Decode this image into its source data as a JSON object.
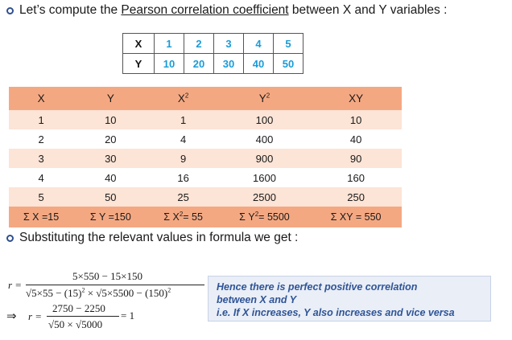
{
  "intro": {
    "prefix": "Let’s compute the ",
    "link": "Pearson correlation coefficient",
    "suffix": " between X and Y variables :"
  },
  "small_table": {
    "x_label": "X",
    "y_label": "Y",
    "x_values": [
      "1",
      "2",
      "3",
      "4",
      "5"
    ],
    "y_values": [
      "10",
      "20",
      "30",
      "40",
      "50"
    ]
  },
  "big_table": {
    "headers": [
      "X",
      "Y",
      "X",
      "Y",
      "XY"
    ],
    "header_sup": [
      "",
      "",
      "2",
      "2",
      ""
    ],
    "rows": [
      [
        "1",
        "10",
        "1",
        "100",
        "10"
      ],
      [
        "2",
        "20",
        "4",
        "400",
        "40"
      ],
      [
        "3",
        "30",
        "9",
        "900",
        "90"
      ],
      [
        "4",
        "40",
        "16",
        "1600",
        "160"
      ],
      [
        "5",
        "50",
        "25",
        "2500",
        "250"
      ]
    ],
    "totals": [
      "Σ X =15",
      "Σ Y =150",
      "Σ X",
      "= 55",
      "Σ Y",
      "= 5500",
      "Σ XY = 550"
    ]
  },
  "substitute_text": "Substituting the relevant values in formula we get :",
  "formula": {
    "r1": "r =",
    "num1": "5×550 − 15×150",
    "den1_a": "√5×55 − (15)",
    "den1_b": " × √5×5500 − (150)",
    "arrow": "⇒",
    "r2": "r =",
    "num2": "2750 − 2250",
    "den2": "√50 × √5000",
    "result": "= 1"
  },
  "note": {
    "line1": "Hence there is perfect positive correlation",
    "line2": "between X and Y",
    "line3": "i.e. If  X increases, Y also increases and vice versa"
  },
  "colors": {
    "orange_header": "#f4a882",
    "row_tint": "#fce4d6",
    "accent_blue": "#1a9bd7",
    "note_text": "#2f5496"
  }
}
